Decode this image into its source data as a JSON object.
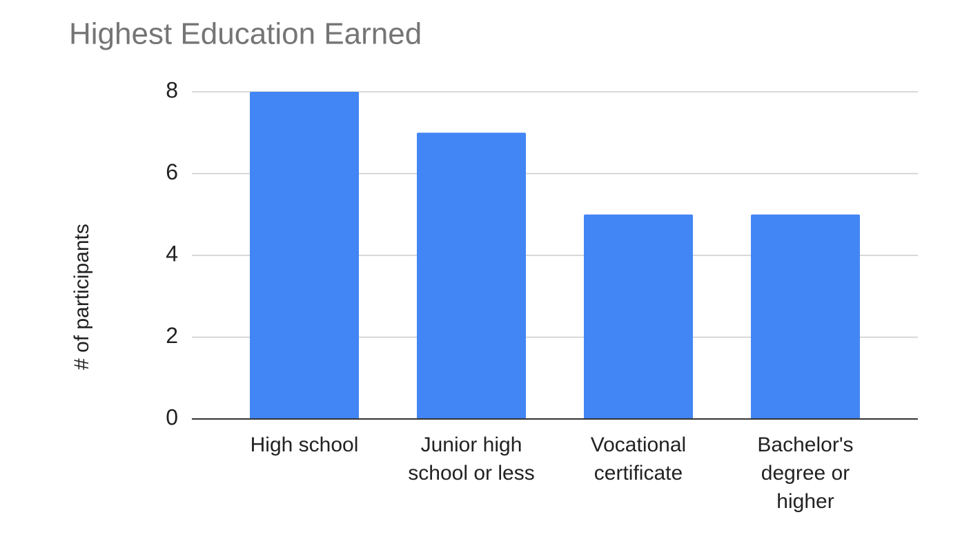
{
  "chart_data": {
    "type": "bar",
    "title": "Highest Education Earned",
    "y_axis_label": "# of participants",
    "categories": [
      "High school",
      "Junior high school or less",
      "Vocational certificate",
      "Bachelor's degree or higher"
    ],
    "values": [
      8,
      7,
      5,
      5
    ],
    "color": "#4285f4",
    "ylim": [
      0,
      8
    ],
    "yticks": [
      0,
      2,
      4,
      6,
      8
    ],
    "grid": true
  }
}
